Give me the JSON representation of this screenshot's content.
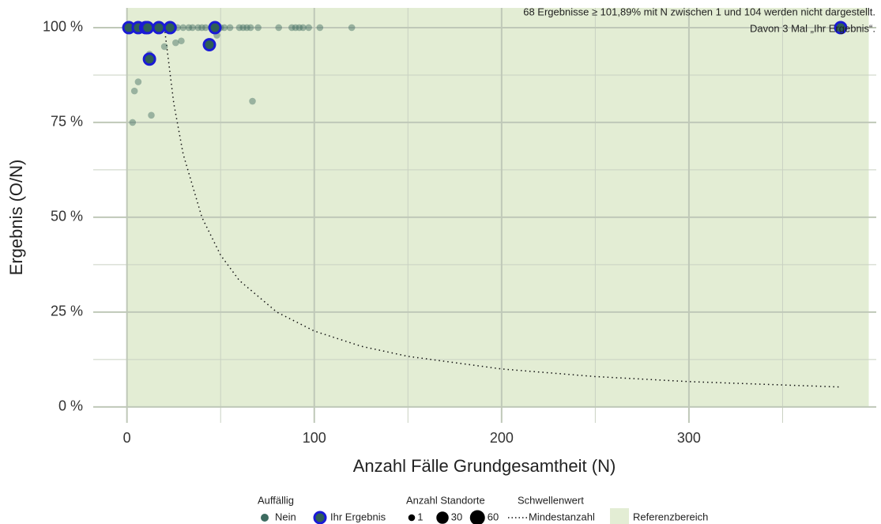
{
  "chart_data": {
    "type": "scatter",
    "xlabel": "Anzahl Fälle Grundgesamtheit (N)",
    "ylabel": "Ergebnis (O/N)",
    "annotation": [
      "68 Ergebnisse ≥ 101,89% mit N zwischen 1 und 104 werden nicht dargestellt.",
      "Davon 3 Mal „Ihr Ergebnis“."
    ],
    "xlim": [
      -18,
      400
    ],
    "ylim": [
      -4.2,
      105.2
    ],
    "xticks": [
      0,
      100,
      200,
      300
    ],
    "xminor": [
      50,
      150,
      250,
      350
    ],
    "yticks": [
      {
        "value": 0,
        "label": "0 %"
      },
      {
        "value": 25,
        "label": "25 %"
      },
      {
        "value": 50,
        "label": "50 %"
      },
      {
        "value": 75,
        "label": "75 %"
      },
      {
        "value": 100,
        "label": "100 %"
      }
    ],
    "yminor": [
      12.5,
      37.5,
      62.5,
      87.5
    ],
    "grid": true,
    "reference": {
      "name": "Referenzbereich",
      "xlim": [
        0,
        396
      ],
      "ylim": [
        0,
        105.2
      ],
      "color": "#e3edd4"
    },
    "series": [
      {
        "name": "Nein",
        "color": "#3d6b60",
        "x": [
          20,
          26,
          29,
          4,
          6,
          13,
          3,
          67,
          48,
          12,
          25,
          27,
          30,
          33,
          35,
          38,
          40,
          42,
          45,
          50,
          52,
          55,
          60,
          62,
          64,
          66,
          70,
          81,
          88,
          90,
          92,
          94,
          97,
          103,
          120
        ],
        "values": [
          95,
          96,
          96.5,
          83.3,
          85.7,
          76.9,
          75,
          80.6,
          98,
          93,
          100,
          100,
          100,
          100,
          100,
          100,
          100,
          100,
          100,
          100,
          100,
          100,
          100,
          100,
          100,
          100,
          100,
          100,
          100,
          100,
          100,
          100,
          100,
          100,
          100
        ],
        "sizes": [
          1,
          1,
          1,
          1,
          1,
          1,
          1,
          1,
          1,
          1,
          1,
          1,
          1,
          1,
          1,
          1,
          1,
          1,
          1,
          1,
          1,
          1,
          1,
          1,
          1,
          1,
          1,
          1,
          1,
          1,
          1,
          1,
          1,
          1,
          1
        ]
      },
      {
        "name": "Ihr Ergebnis",
        "color": "#2f5f55",
        "edge": "#1a1ad6",
        "x": [
          1,
          6,
          10,
          11,
          17,
          23,
          47,
          12,
          44,
          381
        ],
        "values": [
          100,
          100,
          100,
          100,
          100,
          100,
          100,
          91.7,
          95.5,
          100
        ],
        "sizes": [
          20,
          20,
          20,
          20,
          20,
          20,
          20,
          20,
          20,
          20
        ]
      }
    ],
    "threshold": {
      "name": "Mindestanzahl",
      "x": [
        20,
        25,
        30,
        40,
        50,
        60,
        80,
        100,
        125,
        150,
        200,
        250,
        300,
        380
      ],
      "values": [
        100,
        80,
        66.67,
        50,
        40,
        33.33,
        25,
        20,
        16,
        13.33,
        10,
        8,
        6.67,
        5.26
      ]
    },
    "legend": {
      "color_title": "Auffällig",
      "size_title": "Anzahl Standorte",
      "size_keys": [
        1,
        30,
        60
      ],
      "line_title": "Schwellenwert"
    }
  }
}
